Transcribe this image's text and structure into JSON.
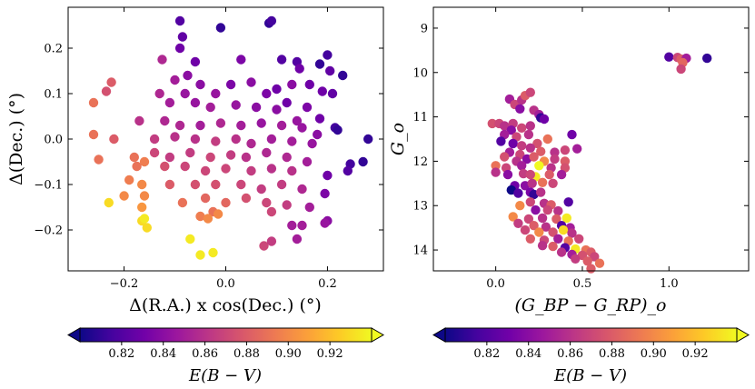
{
  "chart_data": [
    {
      "type": "scatter",
      "name": "sky-positions",
      "xlabel": "Δ(R.A.) x cos(Dec.) (°)",
      "ylabel": "Δ(Dec.) (°)",
      "xlim": [
        -0.31,
        0.31
      ],
      "ylim": [
        -0.29,
        0.29
      ],
      "xticks": [
        -0.2,
        0.0,
        0.2
      ],
      "xtick_labels": [
        "−0.2",
        "0.0",
        "0.2"
      ],
      "yticks": [
        -0.2,
        -0.1,
        0.0,
        0.1,
        0.2
      ],
      "ytick_labels": [
        "−0.2",
        "−0.1",
        "0.0",
        "0.1",
        "0.2"
      ],
      "color_by": "E(B−V)",
      "points": [
        [
          -0.09,
          0.26,
          0.82
        ],
        [
          -0.01,
          0.245,
          0.81
        ],
        [
          0.085,
          0.255,
          0.81
        ],
        [
          0.09,
          0.26,
          0.815
        ],
        [
          -0.085,
          0.225,
          0.825
        ],
        [
          -0.09,
          0.2,
          0.83
        ],
        [
          -0.06,
          0.17,
          0.83
        ],
        [
          0.03,
          0.175,
          0.835
        ],
        [
          0.11,
          0.175,
          0.82
        ],
        [
          0.2,
          0.185,
          0.815
        ],
        [
          0.185,
          0.165,
          0.81
        ],
        [
          0.14,
          0.17,
          0.82
        ],
        [
          0.145,
          0.155,
          0.83
        ],
        [
          0.205,
          0.15,
          0.825
        ],
        [
          0.23,
          0.14,
          0.81
        ],
        [
          -0.225,
          0.125,
          0.88
        ],
        [
          -0.235,
          0.105,
          0.875
        ],
        [
          -0.26,
          0.08,
          0.89
        ],
        [
          -0.125,
          0.175,
          0.855
        ],
        [
          -0.075,
          0.14,
          0.84
        ],
        [
          -0.1,
          0.13,
          0.85
        ],
        [
          -0.13,
          0.1,
          0.855
        ],
        [
          -0.08,
          0.1,
          0.845
        ],
        [
          -0.05,
          0.12,
          0.84
        ],
        [
          -0.02,
          0.1,
          0.845
        ],
        [
          0.01,
          0.12,
          0.835
        ],
        [
          0.05,
          0.125,
          0.84
        ],
        [
          0.08,
          0.1,
          0.835
        ],
        [
          0.1,
          0.11,
          0.83
        ],
        [
          0.13,
          0.12,
          0.84
        ],
        [
          0.165,
          0.12,
          0.83
        ],
        [
          0.19,
          0.105,
          0.83
        ],
        [
          0.21,
          0.1,
          0.825
        ],
        [
          0.12,
          0.08,
          0.83
        ],
        [
          0.16,
          0.07,
          0.835
        ],
        [
          -0.11,
          0.08,
          0.85
        ],
        [
          -0.06,
          0.08,
          0.845
        ],
        [
          -0.03,
          0.07,
          0.85
        ],
        [
          0.02,
          0.075,
          0.845
        ],
        [
          0.06,
          0.07,
          0.84
        ],
        [
          0.1,
          0.065,
          0.84
        ],
        [
          0.14,
          0.04,
          0.845
        ],
        [
          0.185,
          0.045,
          0.83
        ],
        [
          0.215,
          0.025,
          0.815
        ],
        [
          0.22,
          0.02,
          0.81
        ],
        [
          -0.17,
          0.04,
          0.86
        ],
        [
          -0.12,
          0.04,
          0.855
        ],
        [
          -0.09,
          0.03,
          0.855
        ],
        [
          -0.05,
          0.03,
          0.85
        ],
        [
          -0.01,
          0.035,
          0.855
        ],
        [
          0.03,
          0.03,
          0.85
        ],
        [
          0.07,
          0.035,
          0.845
        ],
        [
          0.11,
          0.03,
          0.85
        ],
        [
          0.15,
          0.025,
          0.845
        ],
        [
          0.18,
          0.01,
          0.84
        ],
        [
          -0.26,
          0.01,
          0.89
        ],
        [
          -0.22,
          0.0,
          0.88
        ],
        [
          -0.14,
          0.0,
          0.865
        ],
        [
          -0.1,
          0.005,
          0.86
        ],
        [
          -0.06,
          0.0,
          0.86
        ],
        [
          -0.02,
          -0.005,
          0.865
        ],
        [
          0.02,
          0.0,
          0.86
        ],
        [
          0.05,
          -0.01,
          0.855
        ],
        [
          0.09,
          0.0,
          0.85
        ],
        [
          0.13,
          -0.005,
          0.85
        ],
        [
          0.17,
          -0.01,
          0.845
        ],
        [
          0.28,
          0.0,
          0.81
        ],
        [
          -0.25,
          -0.045,
          0.89
        ],
        [
          -0.18,
          -0.04,
          0.89
        ],
        [
          -0.14,
          -0.03,
          0.87
        ],
        [
          -0.11,
          -0.04,
          0.865
        ],
        [
          -0.07,
          -0.03,
          0.865
        ],
        [
          -0.03,
          -0.04,
          0.87
        ],
        [
          0.01,
          -0.035,
          0.865
        ],
        [
          0.04,
          -0.04,
          0.86
        ],
        [
          0.08,
          -0.03,
          0.855
        ],
        [
          0.12,
          -0.04,
          0.855
        ],
        [
          0.16,
          -0.05,
          0.85
        ],
        [
          0.245,
          -0.055,
          0.815
        ],
        [
          0.27,
          -0.05,
          0.81
        ],
        [
          -0.175,
          -0.06,
          0.89
        ],
        [
          -0.16,
          -0.05,
          0.895
        ],
        [
          -0.12,
          -0.06,
          0.875
        ],
        [
          -0.08,
          -0.06,
          0.87
        ],
        [
          -0.04,
          -0.07,
          0.87
        ],
        [
          0.0,
          -0.065,
          0.87
        ],
        [
          0.05,
          -0.07,
          0.865
        ],
        [
          0.09,
          -0.065,
          0.86
        ],
        [
          0.13,
          -0.07,
          0.86
        ],
        [
          0.2,
          -0.08,
          0.83
        ],
        [
          0.24,
          -0.07,
          0.82
        ],
        [
          -0.19,
          -0.09,
          0.895
        ],
        [
          -0.165,
          -0.1,
          0.9
        ],
        [
          -0.11,
          -0.1,
          0.88
        ],
        [
          -0.06,
          -0.1,
          0.875
        ],
        [
          -0.02,
          -0.1,
          0.875
        ],
        [
          0.03,
          -0.1,
          0.87
        ],
        [
          0.07,
          -0.11,
          0.865
        ],
        [
          0.11,
          -0.1,
          0.865
        ],
        [
          0.15,
          -0.11,
          0.855
        ],
        [
          0.195,
          -0.12,
          0.835
        ],
        [
          -0.16,
          -0.125,
          0.9
        ],
        [
          -0.085,
          -0.14,
          0.89
        ],
        [
          -0.04,
          -0.13,
          0.885
        ],
        [
          0.0,
          -0.14,
          0.885
        ],
        [
          0.04,
          -0.13,
          0.875
        ],
        [
          0.08,
          -0.14,
          0.87
        ],
        [
          0.12,
          -0.145,
          0.865
        ],
        [
          0.165,
          -0.15,
          0.85
        ],
        [
          -0.2,
          -0.125,
          0.9
        ],
        [
          -0.165,
          -0.15,
          0.905
        ],
        [
          -0.23,
          -0.14,
          0.93
        ],
        [
          -0.025,
          -0.16,
          0.89
        ],
        [
          -0.05,
          -0.17,
          0.895
        ],
        [
          -0.035,
          -0.175,
          0.9
        ],
        [
          -0.015,
          -0.165,
          0.9
        ],
        [
          0.09,
          -0.16,
          0.87
        ],
        [
          0.2,
          -0.18,
          0.84
        ],
        [
          0.195,
          -0.185,
          0.845
        ],
        [
          0.15,
          -0.19,
          0.85
        ],
        [
          0.13,
          -0.19,
          0.85
        ],
        [
          -0.165,
          -0.18,
          0.93
        ],
        [
          -0.155,
          -0.195,
          0.93
        ],
        [
          -0.16,
          -0.175,
          0.935
        ],
        [
          -0.07,
          -0.22,
          0.935
        ],
        [
          0.075,
          -0.235,
          0.87
        ],
        [
          0.09,
          -0.225,
          0.865
        ],
        [
          0.14,
          -0.22,
          0.85
        ],
        [
          -0.05,
          -0.255,
          0.935
        ],
        [
          -0.025,
          -0.25,
          0.935
        ]
      ]
    },
    {
      "type": "scatter",
      "name": "color-magnitude",
      "xlabel": "(G_BP − G_RP)_o",
      "ylabel": "G_o",
      "xlim": [
        -0.36,
        1.46
      ],
      "ylim": [
        14.47,
        8.53
      ],
      "xticks": [
        0.0,
        0.5,
        1.0
      ],
      "xtick_labels": [
        "0.0",
        "0.5",
        "1.0"
      ],
      "yticks": [
        9,
        10,
        11,
        12,
        13,
        14
      ],
      "ytick_labels": [
        "9",
        "10",
        "11",
        "12",
        "13",
        "14"
      ],
      "color_by": "E(B−V)",
      "points": [
        [
          1.0,
          9.65,
          0.82
        ],
        [
          1.05,
          9.66,
          0.87
        ],
        [
          1.07,
          9.7,
          0.88
        ],
        [
          1.1,
          9.68,
          0.85
        ],
        [
          1.08,
          9.78,
          0.885
        ],
        [
          1.07,
          9.92,
          0.87
        ],
        [
          1.22,
          9.68,
          0.81
        ],
        [
          0.08,
          10.6,
          0.85
        ],
        [
          0.11,
          10.72,
          0.87
        ],
        [
          0.15,
          10.62,
          0.86
        ],
        [
          0.17,
          10.52,
          0.88
        ],
        [
          0.2,
          10.45,
          0.87
        ],
        [
          0.14,
          10.82,
          0.84
        ],
        [
          0.22,
          10.85,
          0.86
        ],
        [
          0.25,
          10.95,
          0.85
        ],
        [
          0.26,
          11.02,
          0.81
        ],
        [
          0.28,
          11.05,
          0.83
        ],
        [
          -0.02,
          11.15,
          0.875
        ],
        [
          0.02,
          11.15,
          0.87
        ],
        [
          0.05,
          11.2,
          0.86
        ],
        [
          0.1,
          11.15,
          0.865
        ],
        [
          0.15,
          11.25,
          0.87
        ],
        [
          0.2,
          11.2,
          0.86
        ],
        [
          0.09,
          11.3,
          0.84
        ],
        [
          0.05,
          11.4,
          0.85
        ],
        [
          0.12,
          11.45,
          0.87
        ],
        [
          0.19,
          11.4,
          0.86
        ],
        [
          0.03,
          11.55,
          0.82
        ],
        [
          0.1,
          11.6,
          0.83
        ],
        [
          0.15,
          11.65,
          0.865
        ],
        [
          0.24,
          11.6,
          0.875
        ],
        [
          0.3,
          11.5,
          0.89
        ],
        [
          0.44,
          11.4,
          0.83
        ],
        [
          0.08,
          11.8,
          0.85
        ],
        [
          0.14,
          11.85,
          0.87
        ],
        [
          0.2,
          11.7,
          0.86
        ],
        [
          0.26,
          11.78,
          0.88
        ],
        [
          0.34,
          11.8,
          0.86
        ],
        [
          0.4,
          11.75,
          0.87
        ],
        [
          0.47,
          11.72,
          0.85
        ],
        [
          0.05,
          11.9,
          0.875
        ],
        [
          0.12,
          12.0,
          0.86
        ],
        [
          0.18,
          11.95,
          0.84
        ],
        [
          0.22,
          11.9,
          0.88
        ],
        [
          0.28,
          12.0,
          0.9
        ],
        [
          0.34,
          11.95,
          0.865
        ],
        [
          0.4,
          12.0,
          0.88
        ],
        [
          0.0,
          12.1,
          0.89
        ],
        [
          0.06,
          12.15,
          0.87
        ],
        [
          0.15,
          12.1,
          0.85
        ],
        [
          0.25,
          12.1,
          0.94
        ],
        [
          0.32,
          12.15,
          0.86
        ],
        [
          0.4,
          12.15,
          0.875
        ],
        [
          0.0,
          12.25,
          0.86
        ],
        [
          0.07,
          12.3,
          0.84
        ],
        [
          0.16,
          12.28,
          0.865
        ],
        [
          0.23,
          12.35,
          0.935
        ],
        [
          0.2,
          12.3,
          0.87
        ],
        [
          0.31,
          12.3,
          0.88
        ],
        [
          0.38,
          12.3,
          0.85
        ],
        [
          0.11,
          12.55,
          0.83
        ],
        [
          0.17,
          12.55,
          0.84
        ],
        [
          0.21,
          12.5,
          0.86
        ],
        [
          0.27,
          12.48,
          0.89
        ],
        [
          0.33,
          12.5,
          0.87
        ],
        [
          0.09,
          12.65,
          0.8
        ],
        [
          0.13,
          12.72,
          0.82
        ],
        [
          0.2,
          12.7,
          0.835
        ],
        [
          0.22,
          12.75,
          0.81
        ],
        [
          0.26,
          12.7,
          0.86
        ],
        [
          0.42,
          12.92,
          0.82
        ],
        [
          0.2,
          12.92,
          0.87
        ],
        [
          0.28,
          12.95,
          0.86
        ],
        [
          0.32,
          12.98,
          0.88
        ],
        [
          0.14,
          13.0,
          0.9
        ],
        [
          0.23,
          13.1,
          0.84
        ],
        [
          0.3,
          13.1,
          0.87
        ],
        [
          0.36,
          13.12,
          0.86
        ],
        [
          0.1,
          13.25,
          0.9
        ],
        [
          0.19,
          13.3,
          0.87
        ],
        [
          0.27,
          13.28,
          0.86
        ],
        [
          0.35,
          13.3,
          0.88
        ],
        [
          0.41,
          13.28,
          0.935
        ],
        [
          0.13,
          13.4,
          0.865
        ],
        [
          0.22,
          13.45,
          0.88
        ],
        [
          0.29,
          13.48,
          0.86
        ],
        [
          0.38,
          13.45,
          0.82
        ],
        [
          0.43,
          13.5,
          0.85
        ],
        [
          0.17,
          13.55,
          0.87
        ],
        [
          0.25,
          13.6,
          0.9
        ],
        [
          0.33,
          13.6,
          0.875
        ],
        [
          0.39,
          13.55,
          0.93
        ],
        [
          0.44,
          13.62,
          0.86
        ],
        [
          0.2,
          13.75,
          0.88
        ],
        [
          0.28,
          13.78,
          0.87
        ],
        [
          0.36,
          13.75,
          0.85
        ],
        [
          0.42,
          13.8,
          0.89
        ],
        [
          0.48,
          13.75,
          0.87
        ],
        [
          0.27,
          13.9,
          0.86
        ],
        [
          0.33,
          13.92,
          0.88
        ],
        [
          0.4,
          13.95,
          0.82
        ],
        [
          0.46,
          13.98,
          0.935
        ],
        [
          0.52,
          14.0,
          0.89
        ],
        [
          0.55,
          14.05,
          0.88
        ],
        [
          0.38,
          14.05,
          0.86
        ],
        [
          0.44,
          14.1,
          0.85
        ],
        [
          0.5,
          14.12,
          0.875
        ],
        [
          0.57,
          14.15,
          0.87
        ],
        [
          0.46,
          14.2,
          0.865
        ],
        [
          0.53,
          14.25,
          0.88
        ],
        [
          0.6,
          14.3,
          0.89
        ],
        [
          0.55,
          14.42,
          0.88
        ]
      ]
    }
  ],
  "colorbars": [
    {
      "label": "E(B − V)",
      "min": 0.8,
      "max": 0.94,
      "ticks": [
        0.82,
        0.84,
        0.86,
        0.88,
        0.9,
        0.92
      ],
      "tick_labels": [
        "0.82",
        "0.84",
        "0.86",
        "0.88",
        "0.90",
        "0.92"
      ],
      "extend": "both"
    },
    {
      "label": "E(B − V)",
      "min": 0.8,
      "max": 0.94,
      "ticks": [
        0.82,
        0.84,
        0.86,
        0.88,
        0.9,
        0.92
      ],
      "tick_labels": [
        "0.82",
        "0.84",
        "0.86",
        "0.88",
        "0.90",
        "0.92"
      ],
      "extend": "both"
    }
  ],
  "colormap": [
    "#0d0887",
    "#46039f",
    "#7201a8",
    "#9c179e",
    "#bd3786",
    "#d8576b",
    "#ed7953",
    "#fb9f3a",
    "#fdca26",
    "#f0f921"
  ]
}
